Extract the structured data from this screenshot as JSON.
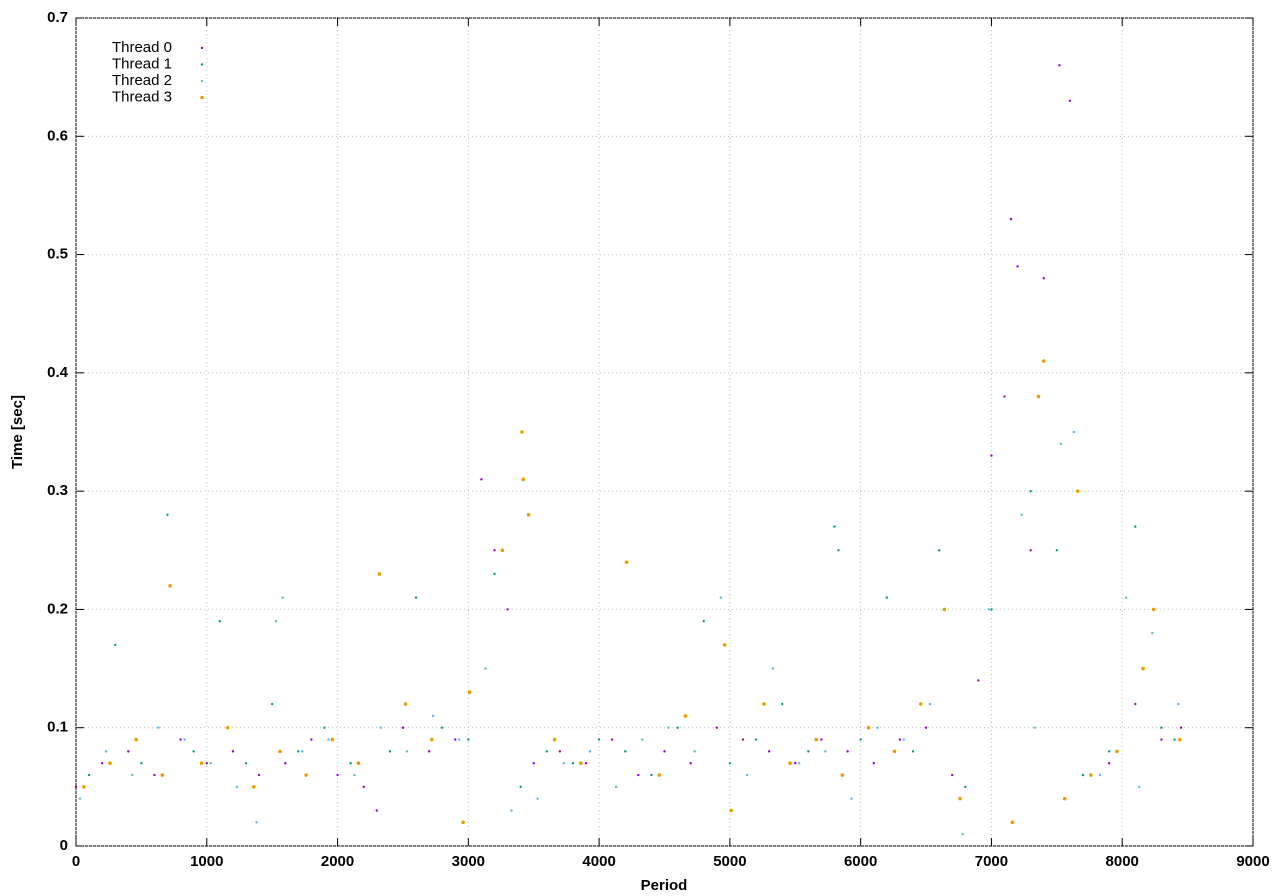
{
  "chart_data": {
    "type": "scatter",
    "xlabel": "Period",
    "ylabel": "Time [sec]",
    "xlim": [
      0,
      9000
    ],
    "xticks": [
      0,
      1000,
      2000,
      3000,
      4000,
      5000,
      6000,
      7000,
      8000,
      9000
    ],
    "ylim": [
      0,
      0.7
    ],
    "yticks": [
      0,
      0.1,
      0.2,
      0.3,
      0.4,
      0.5,
      0.6,
      0.7
    ],
    "grid": true,
    "legend": "top-left",
    "series": [
      {
        "name": "Thread 0",
        "color": "#9400d3",
        "x": [
          0,
          200,
          400,
          600,
          800,
          1000,
          1200,
          1400,
          1600,
          1800,
          2000,
          2200,
          2300,
          2500,
          2700,
          2900,
          3100,
          3200,
          3300,
          3500,
          3700,
          3900,
          4100,
          4300,
          4500,
          4700,
          4900,
          5100,
          5300,
          5500,
          5700,
          5900,
          6100,
          6300,
          6500,
          6700,
          6900,
          7000,
          7100,
          7150,
          7200,
          7300,
          7400,
          7520,
          7600,
          7700,
          7900,
          8100,
          8300,
          8450
        ],
        "values": [
          0.05,
          0.07,
          0.08,
          0.06,
          0.09,
          0.07,
          0.08,
          0.06,
          0.07,
          0.09,
          0.06,
          0.05,
          0.03,
          0.1,
          0.08,
          0.09,
          0.31,
          0.25,
          0.2,
          0.07,
          0.08,
          0.07,
          0.09,
          0.06,
          0.08,
          0.07,
          0.1,
          0.09,
          0.08,
          0.07,
          0.09,
          0.08,
          0.07,
          0.09,
          0.1,
          0.06,
          0.14,
          0.33,
          0.38,
          0.53,
          0.49,
          0.25,
          0.48,
          0.66,
          0.63,
          0.06,
          0.07,
          0.12,
          0.09,
          0.1
        ]
      },
      {
        "name": "Thread 1",
        "color": "#009e73",
        "x": [
          100,
          300,
          500,
          700,
          900,
          1100,
          1300,
          1500,
          1700,
          1900,
          2100,
          2400,
          2600,
          2800,
          3000,
          3200,
          3400,
          3600,
          3800,
          4000,
          4200,
          4400,
          4600,
          4800,
          5000,
          5200,
          5400,
          5600,
          5800,
          5830,
          6000,
          6200,
          6400,
          6600,
          6800,
          7000,
          7300,
          7500,
          7700,
          7900,
          8100,
          8300,
          8400
        ],
        "values": [
          0.06,
          0.17,
          0.07,
          0.28,
          0.08,
          0.19,
          0.07,
          0.12,
          0.08,
          0.1,
          0.07,
          0.08,
          0.21,
          0.1,
          0.09,
          0.23,
          0.05,
          0.08,
          0.07,
          0.09,
          0.08,
          0.06,
          0.1,
          0.19,
          0.07,
          0.09,
          0.12,
          0.08,
          0.27,
          0.25,
          0.09,
          0.21,
          0.08,
          0.25,
          0.05,
          0.2,
          0.3,
          0.25,
          0.06,
          0.08,
          0.27,
          0.1,
          0.09
        ]
      },
      {
        "name": "Thread 2",
        "color": "#56b4e9",
        "x": [
          30,
          230,
          430,
          630,
          830,
          1030,
          1230,
          1380,
          1530,
          1580,
          1730,
          1930,
          2130,
          2330,
          2530,
          2730,
          2930,
          3130,
          3330,
          3530,
          3730,
          3930,
          4130,
          4330,
          4530,
          4730,
          4930,
          5130,
          5330,
          5530,
          5730,
          5930,
          6130,
          6330,
          6530,
          6780,
          6980,
          7230,
          7330,
          7530,
          7630,
          7830,
          8030,
          8130,
          8230,
          8430
        ],
        "values": [
          0.04,
          0.08,
          0.06,
          0.1,
          0.09,
          0.07,
          0.05,
          0.02,
          0.19,
          0.21,
          0.08,
          0.09,
          0.06,
          0.1,
          0.08,
          0.11,
          0.09,
          0.15,
          0.03,
          0.04,
          0.07,
          0.08,
          0.05,
          0.09,
          0.1,
          0.08,
          0.21,
          0.06,
          0.15,
          0.07,
          0.08,
          0.04,
          0.1,
          0.09,
          0.12,
          0.01,
          0.2,
          0.28,
          0.1,
          0.34,
          0.35,
          0.06,
          0.21,
          0.05,
          0.18,
          0.12
        ]
      },
      {
        "name": "Thread 3",
        "color": "#e69f00",
        "x": [
          60,
          260,
          460,
          660,
          720,
          960,
          1160,
          1360,
          1560,
          1760,
          1960,
          2160,
          2320,
          2520,
          2720,
          2960,
          3010,
          3260,
          3410,
          3420,
          3460,
          3660,
          3860,
          4210,
          4460,
          4660,
          4960,
          5010,
          5260,
          5460,
          5660,
          5860,
          6060,
          6260,
          6460,
          6640,
          6760,
          7160,
          7360,
          7400,
          7560,
          7660,
          7760,
          7960,
          8160,
          8240,
          8440
        ],
        "values": [
          0.05,
          0.07,
          0.09,
          0.06,
          0.22,
          0.07,
          0.1,
          0.05,
          0.08,
          0.06,
          0.09,
          0.07,
          0.23,
          0.12,
          0.09,
          0.02,
          0.13,
          0.25,
          0.35,
          0.31,
          0.28,
          0.09,
          0.07,
          0.24,
          0.06,
          0.11,
          0.17,
          0.03,
          0.12,
          0.07,
          0.09,
          0.06,
          0.1,
          0.08,
          0.12,
          0.2,
          0.04,
          0.02,
          0.38,
          0.41,
          0.04,
          0.3,
          0.06,
          0.08,
          0.15,
          0.2,
          0.09
        ]
      }
    ]
  }
}
